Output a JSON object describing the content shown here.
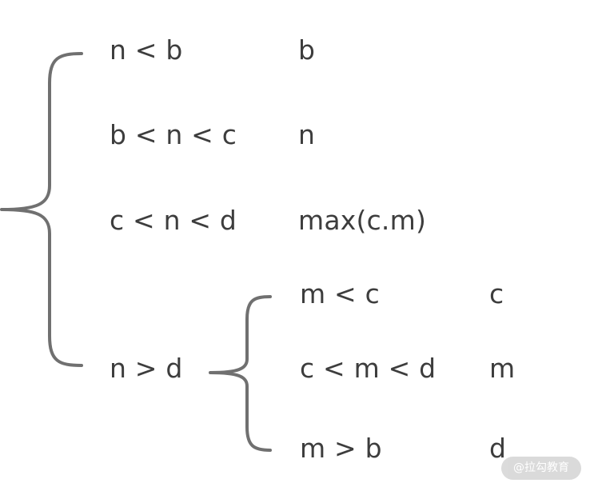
{
  "diagram": {
    "outer_branch": {
      "conditions": [
        "n < b",
        "b < n < c",
        "c < n < d",
        "n > d"
      ],
      "results": [
        "b",
        "n",
        "max(c.m)"
      ]
    },
    "inner_branch": {
      "conditions": [
        "m < c",
        "c < m < d",
        "m > b"
      ],
      "results": [
        "c",
        "m",
        "d"
      ]
    },
    "colors": {
      "text": "#3d3d3d",
      "brace": "#707070",
      "watermark_bg": "#d9d9d9"
    }
  },
  "watermark": {
    "text": "@拉勾教育"
  }
}
